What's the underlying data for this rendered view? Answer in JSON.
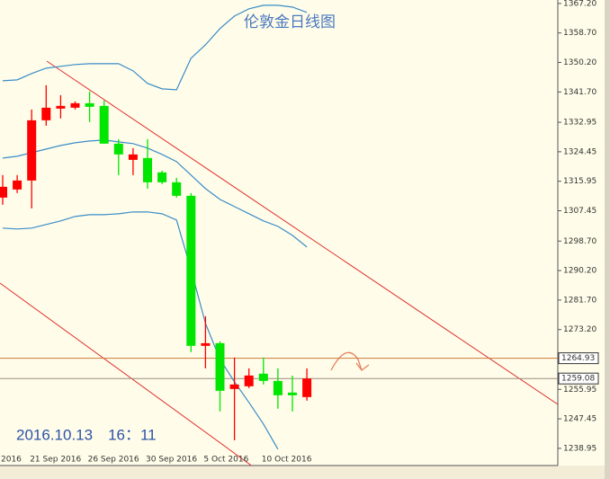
{
  "chart_data": {
    "type": "candlestick",
    "title": "伦敦金日线图",
    "timestamp": "2016.10.13　16：11",
    "categories": [
      "2016",
      null,
      "21 Sep 2016",
      null,
      null,
      null,
      "26 Sep 2016",
      null,
      null,
      null,
      "30 Sep 2016",
      null,
      null,
      null,
      "5 Oct 2016",
      null,
      null,
      null,
      "10 Oct 2016",
      null,
      null,
      null
    ],
    "open": [
      1311.24,
      1313.57,
      1316.16,
      1333.52,
      1336.89,
      1337.15,
      1338.44,
      1337.67,
      1326.79,
      1322.12,
      1322.64,
      1318.5,
      1315.65,
      1311.76,
      1268.5,
      1269.27,
      1256.06,
      1256.84,
      1260.47,
      1258.39,
      1255.03,
      1253.73
    ],
    "high": [
      1317.72,
      1317.72,
      1336.63,
      1343.63,
      1340.78,
      1338.96,
      1341.81,
      1339.22,
      1328.08,
      1325.49,
      1328.08,
      1319.01,
      1316.94,
      1312.54,
      1277.05,
      1269.79,
      1265.13,
      1262.02,
      1265.13,
      1262.02,
      1259.91,
      1262.02
    ],
    "low": [
      1309.17,
      1312.54,
      1308.13,
      1331.97,
      1334.04,
      1336.63,
      1333.0,
      1326.79,
      1317.72,
      1317.72,
      1313.83,
      1315.13,
      1311.24,
      1266.68,
      1262.02,
      1249.58,
      1241.29,
      1256.32,
      1257.36,
      1250.36,
      1249.58,
      1252.7
    ],
    "close": [
      1314.35,
      1316.16,
      1333.52,
      1337.15,
      1337.67,
      1338.44,
      1337.41,
      1326.79,
      1323.68,
      1323.68,
      1315.65,
      1315.65,
      1311.76,
      1268.5,
      1269.27,
      1255.54,
      1257.36,
      1259.95,
      1258.39,
      1254.25,
      1254.25,
      1259.08
    ],
    "up_color": "#ff0000",
    "down_color": "#00e600",
    "bands": [
      {
        "color": "#3a8cc8",
        "values": [
          1344.92,
          1345.18,
          1347.0,
          1348.55,
          1349.07,
          1349.59,
          1349.84,
          1349.84,
          1349.84,
          1347.77,
          1344.14,
          1342.59,
          1342.33,
          1351.4,
          1355.28,
          1359.95,
          1363.57,
          1365.65,
          1366.68,
          1366.68,
          1366.16,
          1364.61
        ]
      },
      {
        "color": "#3a8cc8",
        "values": [
          1322.64,
          1323.16,
          1324.19,
          1325.23,
          1326.26,
          1327.04,
          1327.56,
          1327.82,
          1327.3,
          1326.79,
          1325.49,
          1323.68,
          1321.61,
          1317.72,
          1313.83,
          1310.72,
          1308.65,
          1306.58,
          1304.51,
          1302.95,
          1300.36,
          1296.99
        ]
      },
      {
        "color": "#3a8cc8",
        "values": [
          1302.44,
          1302.18,
          1302.44,
          1303.47,
          1304.51,
          1305.8,
          1306.32,
          1306.32,
          1306.58,
          1307.1,
          1307.1,
          1306.58,
          1304.77,
          1290.52,
          1274.97,
          1264.61,
          1258.13,
          1252.18,
          1245.96,
          1238.7,
          null,
          null
        ]
      }
    ],
    "price_lines": [
      {
        "value": 1264.93,
        "color": "#c8783c"
      },
      {
        "value": 1259.08,
        "color": "#9a8c80"
      }
    ],
    "ylim": [
      1234.0,
      1368.2
    ],
    "yticks": [
      {
        "value": 1367.2,
        "label": "1367.20"
      },
      {
        "value": 1358.7,
        "label": "1358.70"
      },
      {
        "value": 1350.2,
        "label": "1350.20"
      },
      {
        "value": 1341.7,
        "label": "1341.70"
      },
      1332.95,
      1324.45,
      1315.95,
      1307.45,
      {
        "value": 1298.7,
        "label": "1298.70"
      },
      {
        "value": 1290.2,
        "label": "1290.20"
      },
      {
        "value": 1281.7,
        "label": "1281.70"
      },
      {
        "value": 1273.2,
        "label": "1273.20"
      },
      1255.95,
      1247.45,
      1238.95
    ]
  }
}
